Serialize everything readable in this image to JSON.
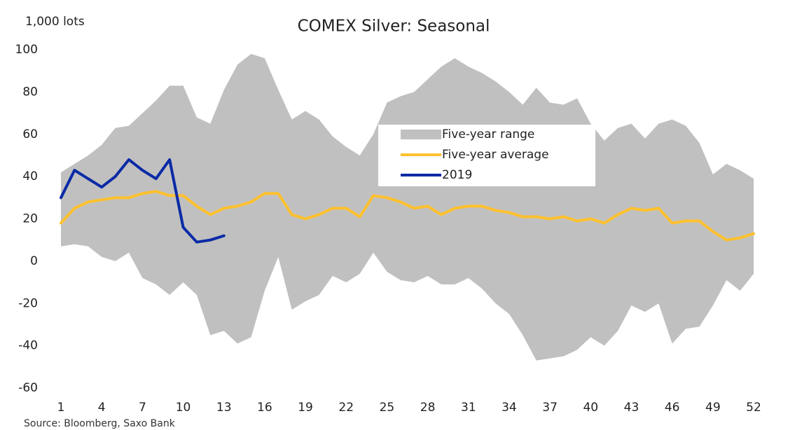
{
  "chart_data": {
    "type": "line",
    "title": "COMEX Silver: Seasonal",
    "y_axis_label": "1,000 lots",
    "source": "Source: Bloomberg,  Saxo Bank",
    "x": [
      1,
      2,
      3,
      4,
      5,
      6,
      7,
      8,
      9,
      10,
      11,
      12,
      13,
      14,
      15,
      16,
      17,
      18,
      19,
      20,
      21,
      22,
      23,
      24,
      25,
      26,
      27,
      28,
      29,
      30,
      31,
      32,
      33,
      34,
      35,
      36,
      37,
      38,
      39,
      40,
      41,
      42,
      43,
      44,
      45,
      46,
      47,
      48,
      49,
      50,
      51,
      52
    ],
    "xlim": [
      1,
      52
    ],
    "xticks": [
      1,
      4,
      7,
      10,
      13,
      16,
      19,
      22,
      25,
      28,
      31,
      34,
      37,
      40,
      43,
      46,
      49,
      52
    ],
    "ylim": [
      -60,
      100
    ],
    "yticks": [
      -60,
      -40,
      -20,
      0,
      20,
      40,
      60,
      80,
      100
    ],
    "legend": "center",
    "series": [
      {
        "name": "Five-year range",
        "color": "#c0c0c0",
        "high": [
          42,
          46,
          50,
          55,
          63,
          64,
          70,
          76,
          83,
          83,
          68,
          65,
          81,
          93,
          98,
          96,
          81,
          67,
          71,
          67,
          59,
          54,
          50,
          60,
          75,
          78,
          80,
          86,
          92,
          96,
          92,
          89,
          85,
          80,
          74,
          82,
          75,
          74,
          77,
          65,
          57,
          63,
          65,
          58,
          65,
          67,
          64,
          56,
          41,
          46,
          43,
          39
        ],
        "low": [
          7,
          8,
          7,
          2,
          0,
          4,
          -8,
          -11,
          -16,
          -10,
          -16,
          -35,
          -33,
          -39,
          -36,
          -14,
          2,
          -23,
          -19,
          -16,
          -7,
          -10,
          -6,
          4,
          -5,
          -9,
          -10,
          -7,
          -11,
          -11,
          -8,
          -13,
          -20,
          -25,
          -35,
          -47,
          -46,
          -45,
          -42,
          -36,
          -40,
          -33,
          -21,
          -24,
          -20,
          -39,
          -32,
          -31,
          -21,
          -9,
          -14,
          -6
        ]
      },
      {
        "name": "Five-year average",
        "color": "#ffc12e",
        "values": [
          18,
          25,
          28,
          29,
          30,
          30,
          32,
          33,
          31,
          31,
          26,
          22,
          25,
          26,
          28,
          32,
          32,
          22,
          20,
          22,
          25,
          25,
          21,
          31,
          30,
          28,
          25,
          26,
          22,
          25,
          26,
          26,
          24,
          23,
          21,
          21,
          20,
          21,
          19,
          20,
          18,
          22,
          25,
          24,
          25,
          18,
          19,
          19,
          14,
          10,
          11,
          13
        ]
      },
      {
        "name": "2019",
        "color": "#0a2aa6",
        "values": [
          30,
          43,
          39,
          35,
          40,
          48,
          43,
          39,
          48,
          16,
          9,
          10,
          12,
          null,
          null,
          null,
          null,
          null,
          null,
          null,
          null,
          null,
          null,
          null,
          null,
          null,
          null,
          null,
          null,
          null,
          null,
          null,
          null,
          null,
          null,
          null,
          null,
          null,
          null,
          null,
          null,
          null,
          null,
          null,
          null,
          null,
          null,
          null,
          null,
          null,
          null,
          null
        ]
      }
    ]
  }
}
